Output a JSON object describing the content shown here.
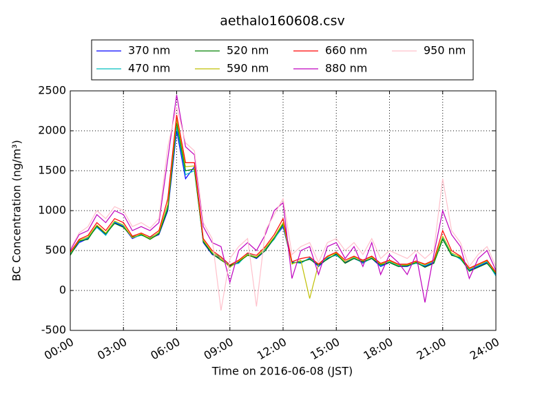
{
  "chart_data": {
    "type": "line",
    "title": "aethalo160608.csv",
    "x_label": "Time on 2016-06-08 (JST)",
    "y_label": "BC Concentration (ng/m³)",
    "x": [
      0,
      0.5,
      1,
      1.5,
      2,
      2.5,
      3,
      3.5,
      4,
      4.5,
      5,
      5.5,
      6,
      6.5,
      7,
      7.5,
      8,
      8.5,
      9,
      9.5,
      10,
      10.5,
      11,
      11.5,
      12,
      12.5,
      13,
      13.5,
      14,
      14.5,
      15,
      15.5,
      16,
      16.5,
      17,
      17.5,
      18,
      18.5,
      19,
      19.5,
      20,
      20.5,
      21,
      21.5,
      22,
      22.5,
      23,
      23.5,
      24
    ],
    "series": [
      {
        "name": "370 nm",
        "color": "#0000ff",
        "values": [
          450,
          600,
          650,
          800,
          700,
          850,
          800,
          650,
          700,
          650,
          700,
          1000,
          2000,
          1400,
          1550,
          600,
          450,
          400,
          300,
          350,
          450,
          400,
          500,
          650,
          800,
          350,
          350,
          400,
          300,
          400,
          450,
          350,
          400,
          350,
          400,
          300,
          350,
          300,
          300,
          350,
          300,
          350,
          650,
          450,
          400,
          250,
          300,
          350,
          200
        ]
      },
      {
        "name": "470 nm",
        "color": "#00bfbf",
        "values": [
          460,
          610,
          660,
          790,
          690,
          860,
          810,
          660,
          690,
          660,
          720,
          1050,
          2050,
          1450,
          1500,
          620,
          470,
          420,
          320,
          340,
          460,
          420,
          520,
          640,
          820,
          360,
          340,
          410,
          310,
          410,
          440,
          360,
          410,
          340,
          410,
          310,
          360,
          310,
          310,
          340,
          310,
          360,
          660,
          460,
          390,
          260,
          310,
          360,
          180
        ]
      },
      {
        "name": "520 nm",
        "color": "#008000",
        "values": [
          440,
          620,
          640,
          810,
          710,
          840,
          790,
          670,
          700,
          640,
          710,
          1020,
          2100,
          1500,
          1520,
          610,
          460,
          380,
          310,
          360,
          440,
          410,
          500,
          660,
          830,
          340,
          360,
          390,
          320,
          390,
          460,
          340,
          400,
          360,
          400,
          320,
          350,
          300,
          310,
          350,
          290,
          340,
          640,
          440,
          410,
          240,
          290,
          340,
          210
        ]
      },
      {
        "name": "590 nm",
        "color": "#bfbf00",
        "values": [
          470,
          630,
          670,
          820,
          720,
          870,
          820,
          660,
          710,
          650,
          730,
          1080,
          2150,
          1550,
          1560,
          630,
          480,
          400,
          290,
          370,
          450,
          420,
          530,
          670,
          850,
          330,
          380,
          -100,
          330,
          420,
          470,
          360,
          420,
          370,
          420,
          330,
          370,
          320,
          320,
          360,
          320,
          370,
          680,
          470,
          420,
          270,
          320,
          370,
          220
        ]
      },
      {
        "name": "660 nm",
        "color": "#ff0000",
        "values": [
          480,
          640,
          690,
          850,
          750,
          900,
          850,
          680,
          720,
          670,
          750,
          1150,
          2200,
          1600,
          1600,
          650,
          500,
          420,
          320,
          380,
          470,
          440,
          550,
          700,
          900,
          360,
          400,
          420,
          330,
          430,
          480,
          380,
          430,
          380,
          430,
          340,
          380,
          330,
          330,
          370,
          330,
          380,
          750,
          500,
          430,
          280,
          330,
          380,
          230
        ]
      },
      {
        "name": "880 nm",
        "color": "#bf00bf",
        "values": [
          500,
          700,
          750,
          950,
          850,
          1000,
          950,
          750,
          800,
          750,
          850,
          1650,
          2450,
          1800,
          1700,
          800,
          600,
          550,
          100,
          500,
          600,
          500,
          700,
          1000,
          1100,
          150,
          500,
          550,
          200,
          550,
          600,
          400,
          550,
          300,
          600,
          200,
          450,
          350,
          200,
          450,
          -150,
          450,
          1000,
          700,
          550,
          150,
          400,
          500,
          250
        ]
      },
      {
        "name": "950 nm",
        "color": "#ffc0cb",
        "values": [
          520,
          720,
          800,
          1000,
          900,
          1050,
          1000,
          800,
          850,
          780,
          900,
          1800,
          2300,
          1850,
          1750,
          850,
          650,
          -250,
          400,
          550,
          650,
          -200,
          750,
          950,
          1150,
          450,
          550,
          600,
          350,
          600,
          650,
          500,
          600,
          450,
          650,
          400,
          500,
          450,
          400,
          500,
          400,
          500,
          1400,
          750,
          600,
          300,
          450,
          550,
          300
        ]
      }
    ],
    "xlim": [
      0,
      24
    ],
    "xticks": [
      {
        "value": 0,
        "label": "00:00"
      },
      {
        "value": 3,
        "label": "03:00"
      },
      {
        "value": 6,
        "label": "06:00"
      },
      {
        "value": 9,
        "label": "09:00"
      },
      {
        "value": 12,
        "label": "12:00"
      },
      {
        "value": 15,
        "label": "15:00"
      },
      {
        "value": 18,
        "label": "18:00"
      },
      {
        "value": 21,
        "label": "21:00"
      },
      {
        "value": 24,
        "label": "24:00"
      }
    ],
    "ylim": [
      -500,
      2500
    ],
    "yticks": [
      -500,
      0,
      500,
      1000,
      1500,
      2000,
      2500
    ],
    "grid": true,
    "legend": "top"
  }
}
